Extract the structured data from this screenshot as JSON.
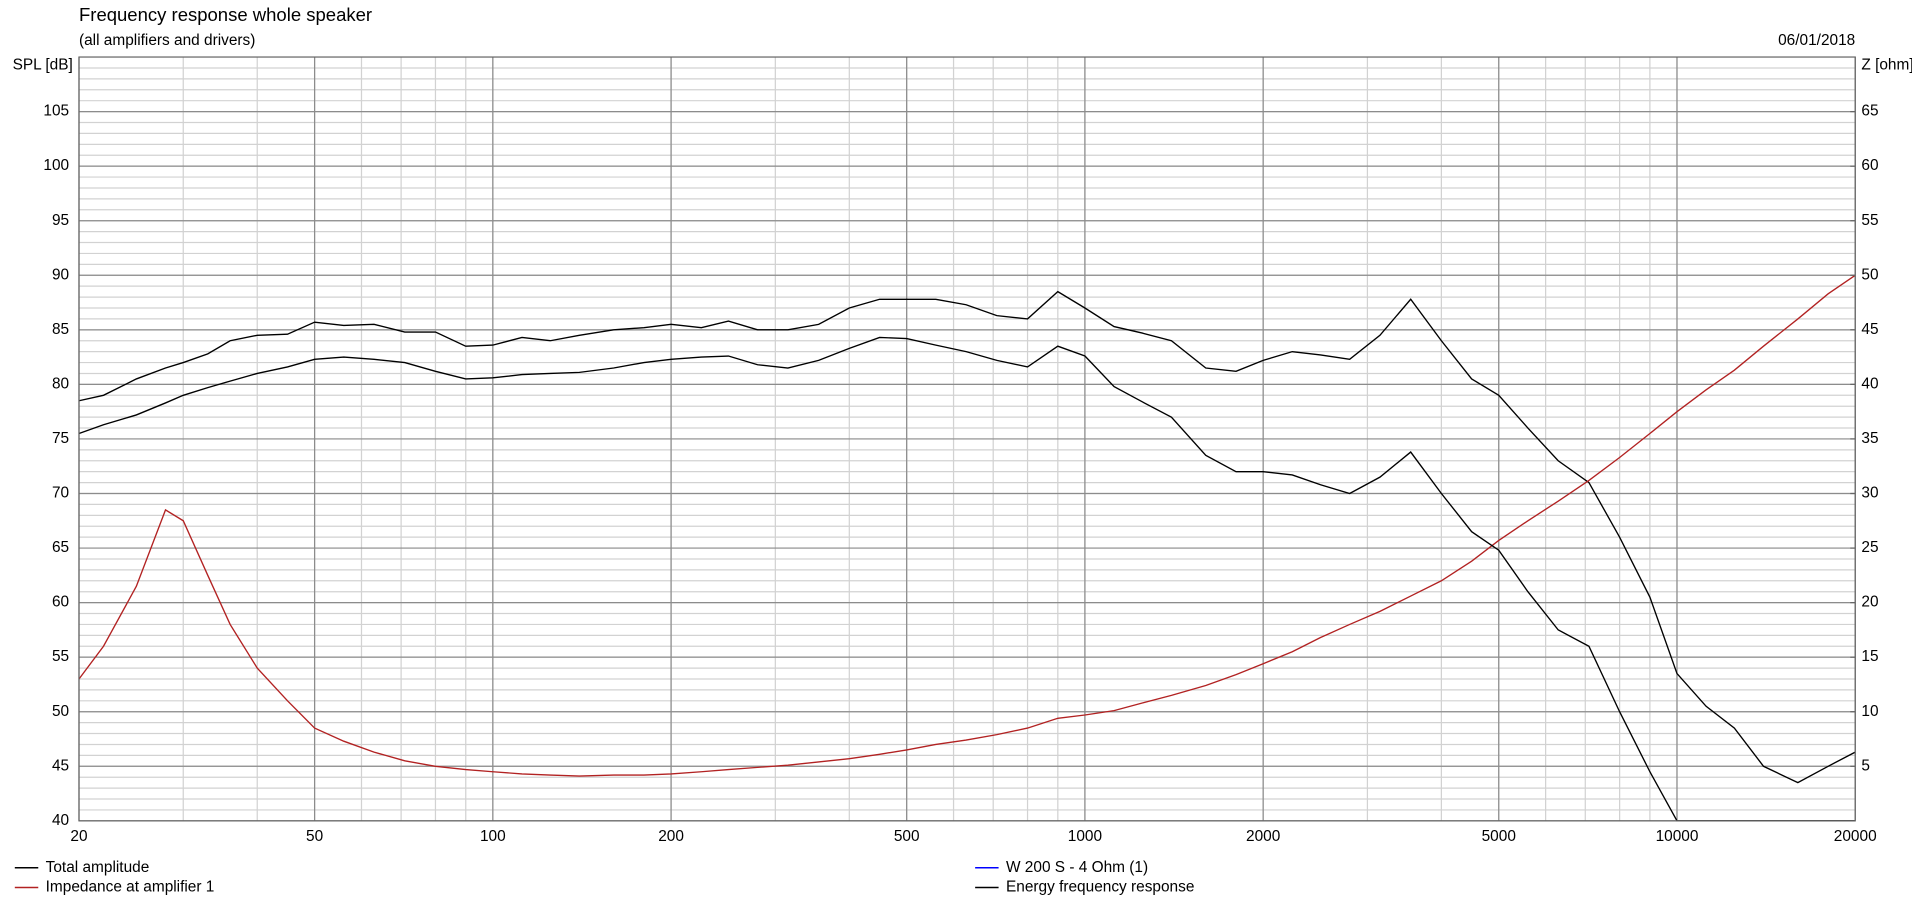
{
  "chart_data": {
    "type": "line",
    "title": "Frequency response whole speaker",
    "subtitle": "(all amplifiers and drivers)",
    "date": "06/01/2018",
    "y_label": "SPL [dB]",
    "y2_label": "Z [ohm]",
    "x_scale": "log",
    "grid": true,
    "xlim": [
      20,
      20000
    ],
    "xticks": [
      20,
      50,
      100,
      200,
      500,
      1000,
      2000,
      5000,
      10000,
      20000
    ],
    "ylim": [
      40,
      110
    ],
    "yticks": [
      40,
      45,
      50,
      55,
      60,
      65,
      70,
      75,
      80,
      85,
      90,
      95,
      100,
      105
    ],
    "y2lim": [
      0,
      70
    ],
    "y2ticks": [
      5,
      10,
      15,
      20,
      25,
      30,
      35,
      40,
      45,
      50,
      55,
      60,
      65
    ],
    "x": [
      20,
      22,
      25,
      28,
      30,
      33,
      36,
      40,
      45,
      50,
      56,
      63,
      71,
      80,
      90,
      100,
      112,
      125,
      140,
      160,
      180,
      200,
      225,
      250,
      280,
      315,
      355,
      400,
      450,
      500,
      560,
      630,
      710,
      800,
      900,
      1000,
      1120,
      1250,
      1400,
      1600,
      1800,
      2000,
      2240,
      2500,
      2800,
      3150,
      3550,
      4000,
      4500,
      5000,
      5600,
      6300,
      7100,
      8000,
      9000,
      10000,
      11200,
      12500,
      14000,
      16000,
      18000,
      20000
    ],
    "series": [
      {
        "name": "Total amplitude",
        "color": "#000000",
        "values": [
          78.5,
          79,
          80.5,
          81.5,
          82,
          82.8,
          84,
          84.5,
          84.6,
          85.7,
          85.4,
          85.5,
          84.8,
          84.8,
          83.5,
          83.6,
          84.3,
          84,
          84.5,
          85,
          85.2,
          85.5,
          85.2,
          85.8,
          85,
          85,
          85.5,
          87,
          87.8,
          87.8,
          87.8,
          87.3,
          86.3,
          86,
          88.5,
          87,
          85.3,
          84.7,
          84,
          81.5,
          81.2,
          82.2,
          83,
          82.7,
          82.3,
          84.5,
          87.8,
          84,
          80.5,
          79,
          76,
          73,
          71,
          66,
          60.5,
          53.5,
          50.5,
          48.5,
          45,
          43.5,
          45,
          46.3
        ]
      },
      {
        "name": "Impedance at amplifier 1",
        "color": "#b22222",
        "axis": "y2",
        "values": [
          13,
          16,
          21.5,
          28.5,
          27.5,
          22.5,
          18,
          14,
          11,
          8.5,
          7.3,
          6.3,
          5.5,
          5,
          4.7,
          4.5,
          4.3,
          4.2,
          4.1,
          4.2,
          4.2,
          4.3,
          4.5,
          4.7,
          4.9,
          5.1,
          5.4,
          5.7,
          6.1,
          6.5,
          7,
          7.4,
          7.9,
          8.5,
          9.4,
          9.7,
          10.1,
          10.8,
          11.5,
          12.4,
          13.4,
          14.4,
          15.5,
          16.8,
          18,
          19.2,
          20.6,
          22,
          23.8,
          25.7,
          27.5,
          29.3,
          31.2,
          33.3,
          35.5,
          37.5,
          39.5,
          41.3,
          43.5,
          46,
          48.3,
          50
        ]
      },
      {
        "name": "W 200 S - 4 Ohm (1)",
        "color": "#0000ff",
        "values": [
          null,
          null,
          null,
          null,
          null,
          null,
          null,
          null,
          null,
          null,
          null,
          null,
          null,
          null,
          null,
          null,
          null,
          null,
          null,
          null,
          null,
          null,
          null,
          null,
          null,
          null,
          null,
          null,
          null,
          null,
          null,
          null,
          null,
          null,
          null,
          null,
          null,
          null,
          null,
          null,
          null,
          null,
          null,
          null,
          null,
          null,
          null,
          null,
          null,
          null,
          null,
          null,
          null,
          null,
          null,
          null,
          null,
          null,
          null,
          null,
          null,
          null
        ]
      },
      {
        "name": "Energy frequency response",
        "color": "#000000",
        "values": [
          75.5,
          76.3,
          77.2,
          78.3,
          79,
          79.7,
          80.3,
          81,
          81.6,
          82.3,
          82.5,
          82.3,
          82,
          81.2,
          80.5,
          80.6,
          80.9,
          81,
          81.1,
          81.5,
          82,
          82.3,
          82.5,
          82.6,
          81.8,
          81.5,
          82.2,
          83.3,
          84.3,
          84.2,
          83.6,
          83,
          82.2,
          81.6,
          83.5,
          82.6,
          79.8,
          78.4,
          77,
          73.5,
          72,
          72,
          71.7,
          70.8,
          70,
          71.5,
          73.8,
          70,
          66.5,
          64.8,
          61,
          57.5,
          56,
          50,
          44.5,
          40,
          40,
          40,
          40,
          40,
          40,
          40
        ]
      }
    ]
  }
}
